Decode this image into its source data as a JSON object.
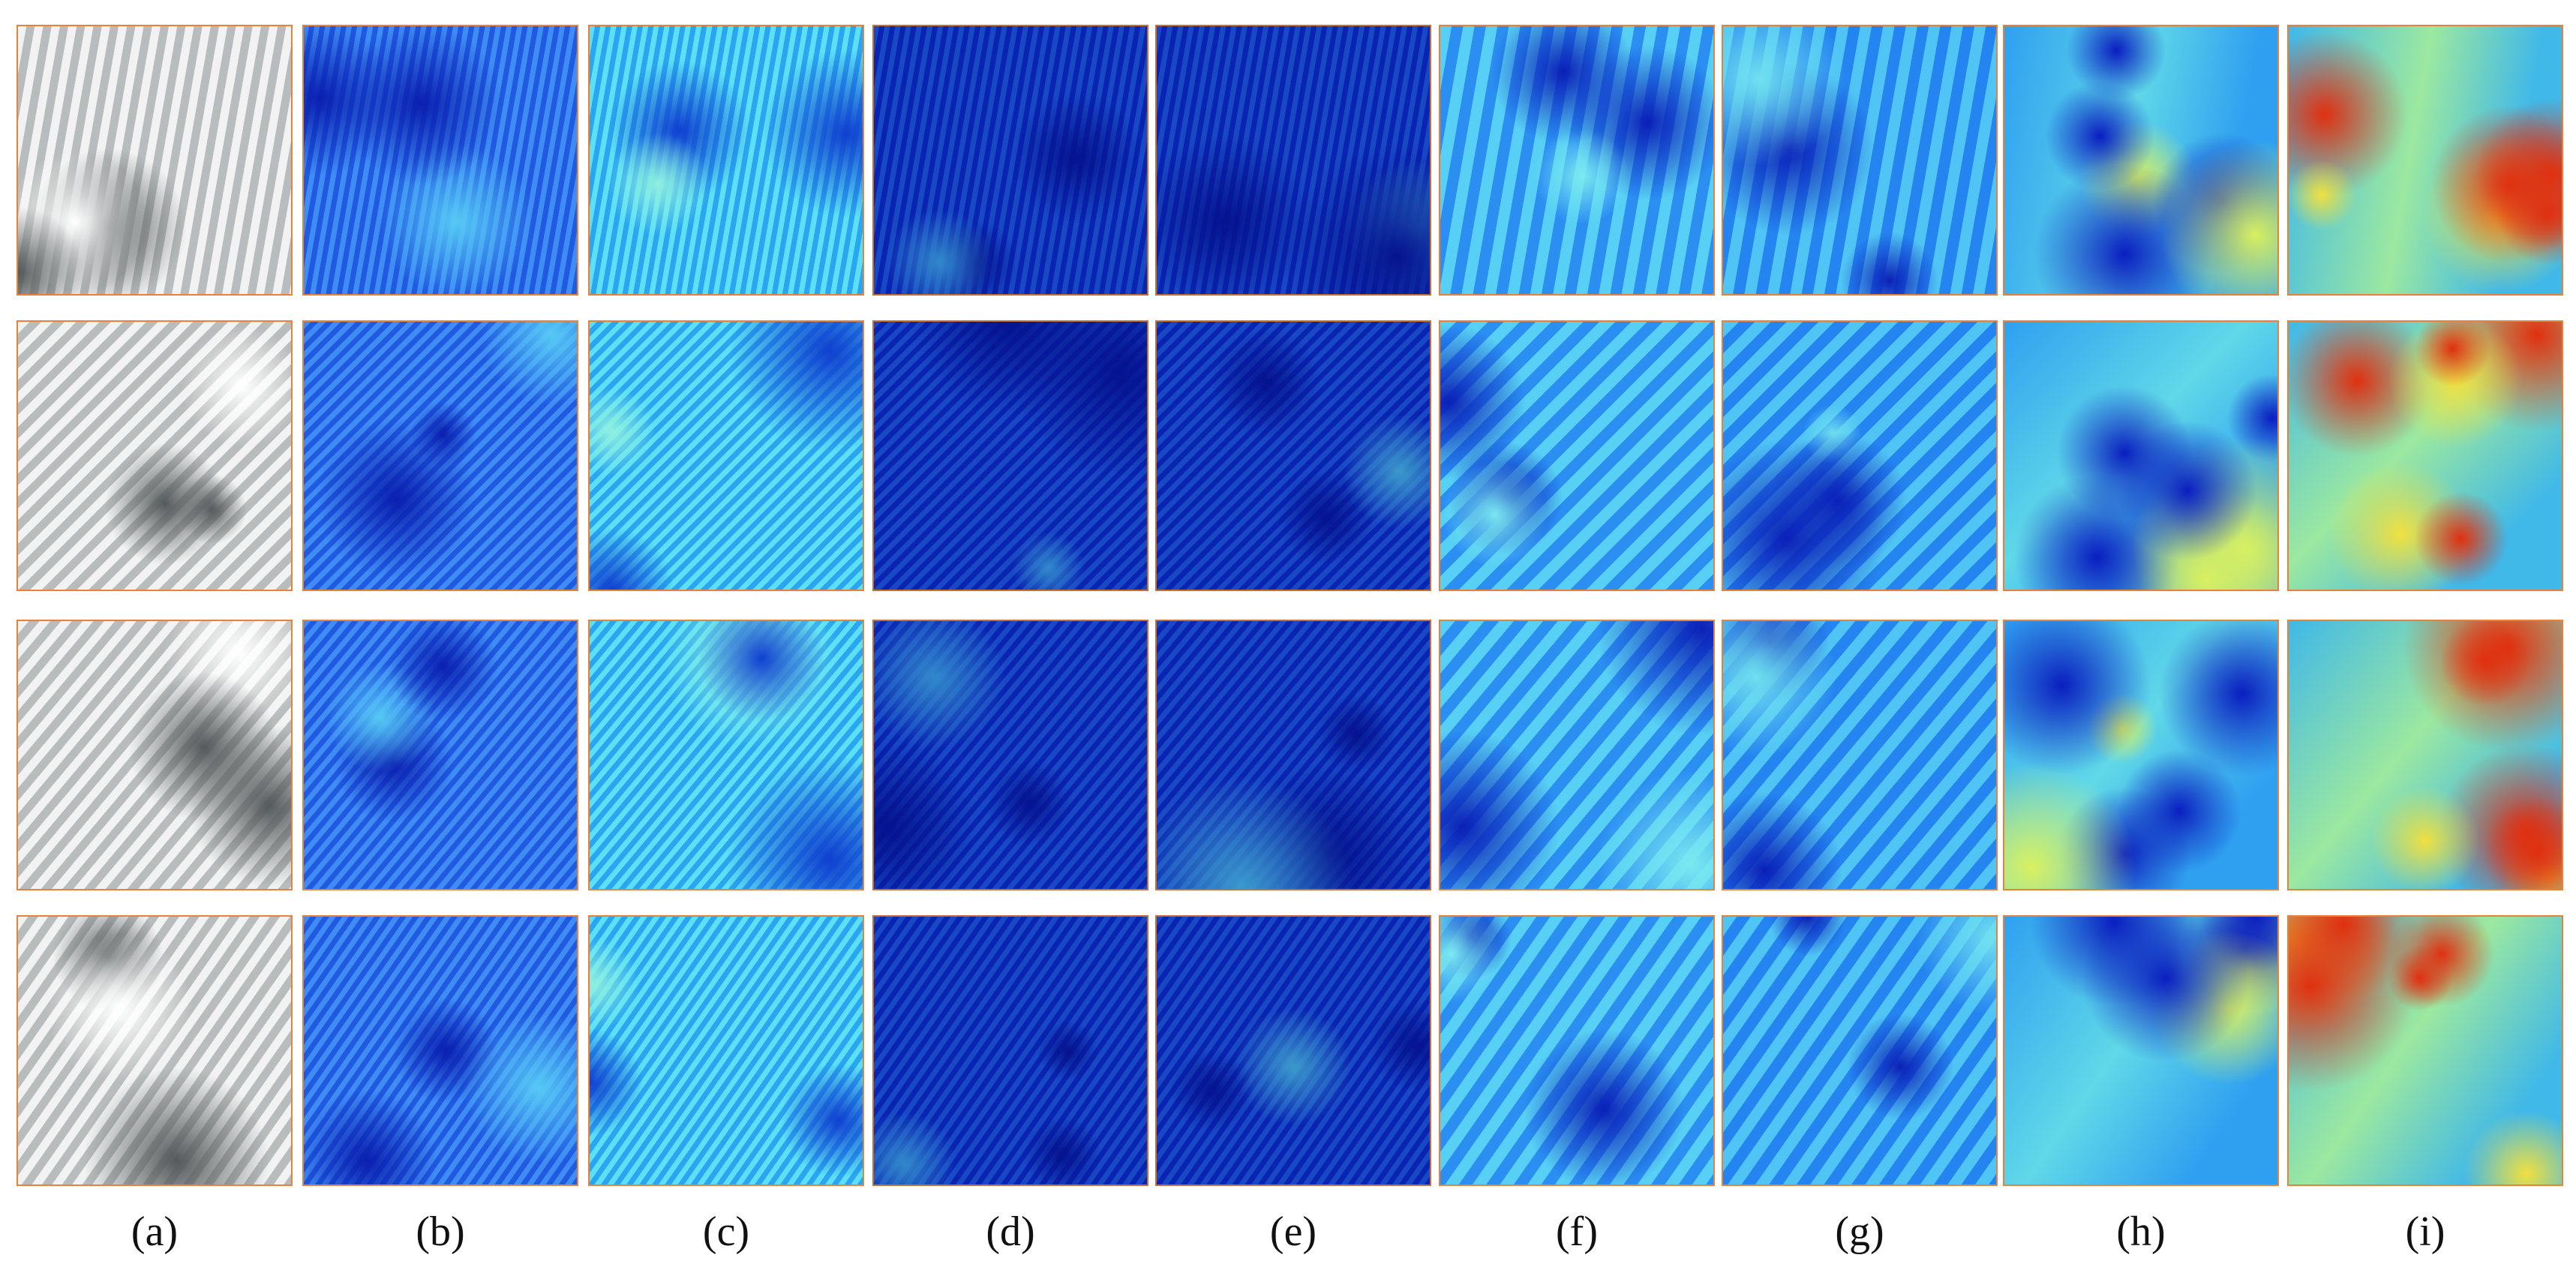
{
  "figure": {
    "labels": [
      "(a)",
      "(b)",
      "(c)",
      "(d)",
      "(e)",
      "(f)",
      "(g)",
      "(h)",
      "(i)"
    ]
  }
}
